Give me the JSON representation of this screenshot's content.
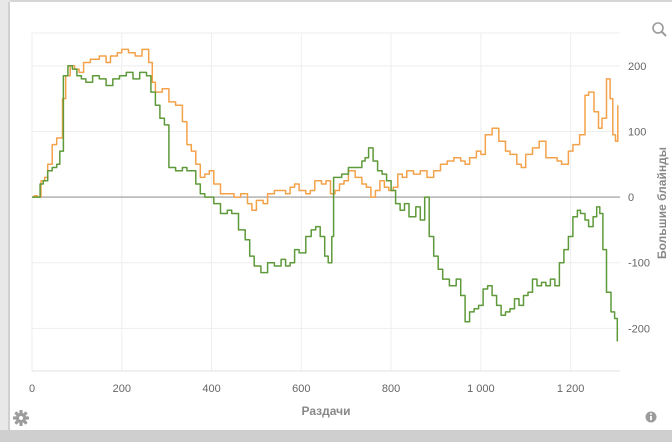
{
  "chart_data": {
    "type": "line",
    "xlabel": "Раздачи",
    "ylabel": "Большие блайнды",
    "xlim": [
      0,
      1310
    ],
    "ylim": [
      -265,
      250
    ],
    "x_ticks": [
      0,
      200,
      400,
      600,
      800,
      1000,
      1200
    ],
    "x_tick_labels": [
      "0",
      "200",
      "400",
      "600",
      "800",
      "1 000",
      "1 200"
    ],
    "y_ticks": [
      200,
      100,
      0,
      -100,
      -200
    ],
    "y_tick_labels": [
      "200",
      "100",
      "0",
      "-100",
      "-200"
    ],
    "grid": true,
    "legend": "none",
    "series": [
      {
        "color": "#f4a24a",
        "points": [
          [
            0,
            0
          ],
          [
            5,
            2
          ],
          [
            12,
            0
          ],
          [
            20,
            25
          ],
          [
            28,
            30
          ],
          [
            35,
            50
          ],
          [
            45,
            80
          ],
          [
            55,
            90
          ],
          [
            62,
            90
          ],
          [
            68,
            150
          ],
          [
            75,
            185
          ],
          [
            85,
            200
          ],
          [
            95,
            195
          ],
          [
            105,
            190
          ],
          [
            115,
            205
          ],
          [
            130,
            210
          ],
          [
            150,
            215
          ],
          [
            165,
            205
          ],
          [
            175,
            215
          ],
          [
            190,
            220
          ],
          [
            200,
            225
          ],
          [
            215,
            220
          ],
          [
            230,
            215
          ],
          [
            245,
            225
          ],
          [
            260,
            205
          ],
          [
            268,
            175
          ],
          [
            275,
            160
          ],
          [
            290,
            165
          ],
          [
            305,
            145
          ],
          [
            320,
            140
          ],
          [
            335,
            115
          ],
          [
            345,
            80
          ],
          [
            355,
            70
          ],
          [
            365,
            50
          ],
          [
            375,
            30
          ],
          [
            385,
            35
          ],
          [
            395,
            40
          ],
          [
            405,
            20
          ],
          [
            420,
            5
          ],
          [
            435,
            5
          ],
          [
            450,
            0
          ],
          [
            465,
            5
          ],
          [
            480,
            -10
          ],
          [
            490,
            -20
          ],
          [
            500,
            -5
          ],
          [
            515,
            -10
          ],
          [
            525,
            5
          ],
          [
            540,
            10
          ],
          [
            555,
            10
          ],
          [
            565,
            5
          ],
          [
            575,
            15
          ],
          [
            585,
            20
          ],
          [
            595,
            10
          ],
          [
            610,
            5
          ],
          [
            620,
            10
          ],
          [
            630,
            25
          ],
          [
            645,
            20
          ],
          [
            655,
            25
          ],
          [
            665,
            5
          ],
          [
            675,
            10
          ],
          [
            685,
            20
          ],
          [
            695,
            25
          ],
          [
            705,
            40
          ],
          [
            720,
            30
          ],
          [
            735,
            20
          ],
          [
            745,
            15
          ],
          [
            755,
            0
          ],
          [
            765,
            10
          ],
          [
            775,
            25
          ],
          [
            785,
            15
          ],
          [
            795,
            10
          ],
          [
            805,
            15
          ],
          [
            815,
            35
          ],
          [
            825,
            30
          ],
          [
            835,
            40
          ],
          [
            850,
            35
          ],
          [
            865,
            40
          ],
          [
            880,
            30
          ],
          [
            895,
            40
          ],
          [
            910,
            50
          ],
          [
            925,
            55
          ],
          [
            940,
            60
          ],
          [
            955,
            55
          ],
          [
            965,
            50
          ],
          [
            975,
            60
          ],
          [
            990,
            70
          ],
          [
            1000,
            65
          ],
          [
            1010,
            95
          ],
          [
            1025,
            105
          ],
          [
            1040,
            85
          ],
          [
            1055,
            70
          ],
          [
            1065,
            65
          ],
          [
            1080,
            50
          ],
          [
            1090,
            45
          ],
          [
            1100,
            65
          ],
          [
            1115,
            75
          ],
          [
            1130,
            85
          ],
          [
            1145,
            60
          ],
          [
            1160,
            60
          ],
          [
            1170,
            55
          ],
          [
            1180,
            50
          ],
          [
            1195,
            70
          ],
          [
            1205,
            80
          ],
          [
            1220,
            95
          ],
          [
            1232,
            155
          ],
          [
            1240,
            160
          ],
          [
            1252,
            130
          ],
          [
            1262,
            105
          ],
          [
            1270,
            120
          ],
          [
            1280,
            180
          ],
          [
            1288,
            150
          ],
          [
            1294,
            95
          ],
          [
            1300,
            85
          ],
          [
            1305,
            140
          ]
        ]
      },
      {
        "color": "#5f9a3a",
        "points": [
          [
            0,
            0
          ],
          [
            5,
            0
          ],
          [
            12,
            0
          ],
          [
            18,
            20
          ],
          [
            25,
            25
          ],
          [
            35,
            40
          ],
          [
            45,
            45
          ],
          [
            55,
            50
          ],
          [
            62,
            70
          ],
          [
            70,
            185
          ],
          [
            80,
            200
          ],
          [
            90,
            195
          ],
          [
            100,
            185
          ],
          [
            110,
            180
          ],
          [
            120,
            175
          ],
          [
            135,
            185
          ],
          [
            150,
            180
          ],
          [
            165,
            170
          ],
          [
            180,
            180
          ],
          [
            195,
            185
          ],
          [
            210,
            190
          ],
          [
            225,
            180
          ],
          [
            240,
            190
          ],
          [
            255,
            185
          ],
          [
            265,
            160
          ],
          [
            275,
            140
          ],
          [
            285,
            120
          ],
          [
            295,
            110
          ],
          [
            305,
            45
          ],
          [
            320,
            40
          ],
          [
            335,
            45
          ],
          [
            345,
            40
          ],
          [
            355,
            40
          ],
          [
            365,
            20
          ],
          [
            375,
            5
          ],
          [
            385,
            0
          ],
          [
            395,
            0
          ],
          [
            405,
            -10
          ],
          [
            420,
            -25
          ],
          [
            435,
            -20
          ],
          [
            445,
            -25
          ],
          [
            460,
            -50
          ],
          [
            475,
            -65
          ],
          [
            485,
            -90
          ],
          [
            495,
            -105
          ],
          [
            510,
            -115
          ],
          [
            525,
            -100
          ],
          [
            540,
            -105
          ],
          [
            555,
            -95
          ],
          [
            565,
            -105
          ],
          [
            575,
            -100
          ],
          [
            585,
            -80
          ],
          [
            595,
            -85
          ],
          [
            610,
            -60
          ],
          [
            622,
            -50
          ],
          [
            632,
            -45
          ],
          [
            642,
            -60
          ],
          [
            652,
            -90
          ],
          [
            660,
            -100
          ],
          [
            668,
            -60
          ],
          [
            672,
            30
          ],
          [
            680,
            30
          ],
          [
            690,
            35
          ],
          [
            705,
            45
          ],
          [
            720,
            45
          ],
          [
            735,
            55
          ],
          [
            742,
            60
          ],
          [
            750,
            75
          ],
          [
            760,
            55
          ],
          [
            770,
            40
          ],
          [
            780,
            35
          ],
          [
            790,
            25
          ],
          [
            800,
            10
          ],
          [
            810,
            -10
          ],
          [
            820,
            -20
          ],
          [
            830,
            -10
          ],
          [
            840,
            -30
          ],
          [
            855,
            -15
          ],
          [
            865,
            -35
          ],
          [
            875,
            0
          ],
          [
            885,
            -60
          ],
          [
            895,
            -90
          ],
          [
            905,
            -110
          ],
          [
            915,
            -125
          ],
          [
            930,
            -135
          ],
          [
            945,
            -125
          ],
          [
            955,
            -150
          ],
          [
            965,
            -190
          ],
          [
            975,
            -175
          ],
          [
            985,
            -170
          ],
          [
            995,
            -165
          ],
          [
            1005,
            -140
          ],
          [
            1015,
            -135
          ],
          [
            1025,
            -150
          ],
          [
            1035,
            -165
          ],
          [
            1045,
            -180
          ],
          [
            1055,
            -175
          ],
          [
            1065,
            -170
          ],
          [
            1075,
            -155
          ],
          [
            1085,
            -165
          ],
          [
            1095,
            -150
          ],
          [
            1105,
            -145
          ],
          [
            1115,
            -125
          ],
          [
            1125,
            -135
          ],
          [
            1135,
            -130
          ],
          [
            1145,
            -135
          ],
          [
            1155,
            -125
          ],
          [
            1165,
            -135
          ],
          [
            1175,
            -100
          ],
          [
            1185,
            -80
          ],
          [
            1195,
            -60
          ],
          [
            1205,
            -30
          ],
          [
            1215,
            -20
          ],
          [
            1222,
            -25
          ],
          [
            1232,
            -35
          ],
          [
            1240,
            -45
          ],
          [
            1250,
            -30
          ],
          [
            1258,
            -15
          ],
          [
            1265,
            -25
          ],
          [
            1272,
            -80
          ],
          [
            1280,
            -145
          ],
          [
            1290,
            -175
          ],
          [
            1298,
            -185
          ],
          [
            1304,
            -220
          ]
        ]
      }
    ]
  },
  "icons": {
    "zoom": "magnifier-icon",
    "settings": "gear-icon",
    "info": "info-icon"
  }
}
